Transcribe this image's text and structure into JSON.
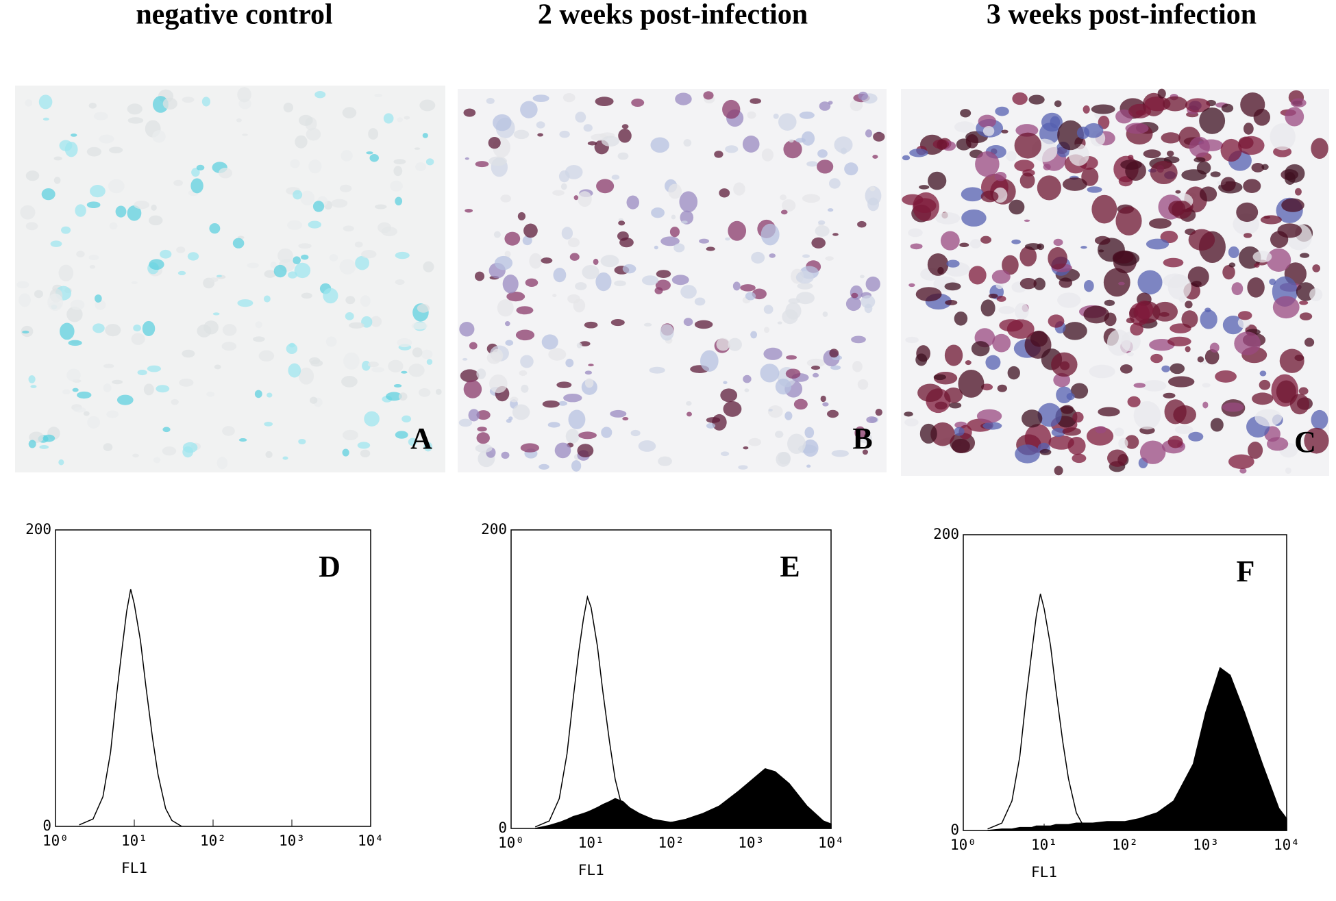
{
  "titles": [
    "negative control",
    "2 weeks post-infection",
    "3 weeks post-infection"
  ],
  "image_panels": {
    "labels": [
      "A",
      "B",
      "C"
    ]
  },
  "chart_data": [
    {
      "type": "area",
      "annotation": "D",
      "xlabel": "FL1",
      "xscale": "log",
      "xlim": [
        1,
        10000
      ],
      "ylim": [
        0,
        200
      ],
      "xticks": [
        {
          "value": 1,
          "label": "10⁰"
        },
        {
          "value": 10,
          "label": "10¹"
        },
        {
          "value": 100,
          "label": "10²"
        },
        {
          "value": 1000,
          "label": "10³"
        },
        {
          "value": 10000,
          "label": "10⁴"
        }
      ],
      "yticks": [
        0,
        200
      ],
      "x": [
        2,
        3,
        4,
        5,
        6,
        7,
        8,
        9,
        10,
        12,
        14,
        17,
        20,
        25,
        30,
        40,
        60,
        100,
        150,
        250,
        400,
        700,
        1000,
        1500,
        2000,
        3000,
        5000,
        8000,
        10000
      ],
      "series": [
        {
          "color": "#000000",
          "style": "outline",
          "values": [
            1,
            5,
            20,
            50,
            90,
            120,
            145,
            160,
            150,
            125,
            95,
            60,
            35,
            12,
            4,
            0,
            null,
            null,
            null,
            null,
            null,
            null,
            null,
            null,
            null,
            null,
            null,
            null,
            null
          ]
        }
      ]
    },
    {
      "type": "area",
      "annotation": "E",
      "xlabel": "FL1",
      "xscale": "log",
      "xlim": [
        1,
        10000
      ],
      "ylim": [
        0,
        200
      ],
      "xticks": [
        {
          "value": 1,
          "label": "10⁰"
        },
        {
          "value": 10,
          "label": "10¹"
        },
        {
          "value": 100,
          "label": "10²"
        },
        {
          "value": 1000,
          "label": "10³"
        },
        {
          "value": 10000,
          "label": "10⁴"
        }
      ],
      "yticks": [
        0,
        200
      ],
      "x": [
        2,
        3,
        4,
        5,
        6,
        7,
        8,
        9,
        10,
        12,
        14,
        17,
        20,
        25,
        30,
        40,
        60,
        100,
        150,
        250,
        400,
        700,
        1000,
        1500,
        2000,
        3000,
        5000,
        8000,
        10000
      ],
      "series": [
        {
          "color": "#000000",
          "style": "outline",
          "values": [
            1,
            5,
            20,
            50,
            88,
            118,
            140,
            155,
            148,
            122,
            92,
            58,
            33,
            12,
            4,
            0,
            null,
            null,
            null,
            null,
            null,
            null,
            null,
            null,
            null,
            null,
            null,
            null,
            null
          ]
        },
        {
          "color": "#000000",
          "style": "filled",
          "values": [
            0,
            2,
            4,
            6,
            8,
            9,
            10,
            11,
            12,
            14,
            16,
            18,
            20,
            18,
            14,
            10,
            6,
            4,
            6,
            10,
            15,
            25,
            32,
            40,
            38,
            30,
            15,
            5,
            3
          ]
        }
      ]
    },
    {
      "type": "area",
      "annotation": "F",
      "xlabel": "FL1",
      "xscale": "log",
      "xlim": [
        1,
        10000
      ],
      "ylim": [
        0,
        200
      ],
      "xticks": [
        {
          "value": 1,
          "label": "10⁰"
        },
        {
          "value": 10,
          "label": "10¹"
        },
        {
          "value": 100,
          "label": "10²"
        },
        {
          "value": 1000,
          "label": "10³"
        },
        {
          "value": 10000,
          "label": "10⁴"
        }
      ],
      "yticks": [
        0,
        200
      ],
      "x": [
        2,
        3,
        4,
        5,
        6,
        7,
        8,
        9,
        10,
        12,
        14,
        17,
        20,
        25,
        30,
        40,
        60,
        100,
        150,
        250,
        400,
        700,
        1000,
        1500,
        2000,
        3000,
        5000,
        8000,
        10000
      ],
      "series": [
        {
          "color": "#000000",
          "style": "outline",
          "values": [
            1,
            5,
            20,
            50,
            90,
            120,
            145,
            160,
            150,
            125,
            95,
            60,
            35,
            12,
            4,
            0,
            null,
            null,
            null,
            null,
            null,
            null,
            null,
            null,
            null,
            null,
            null,
            null,
            null
          ]
        },
        {
          "color": "#000000",
          "style": "filled",
          "values": [
            0,
            1,
            1,
            2,
            2,
            2,
            3,
            3,
            3,
            3,
            4,
            4,
            4,
            5,
            5,
            5,
            6,
            6,
            8,
            12,
            20,
            45,
            80,
            110,
            105,
            80,
            45,
            15,
            8
          ]
        }
      ]
    }
  ]
}
